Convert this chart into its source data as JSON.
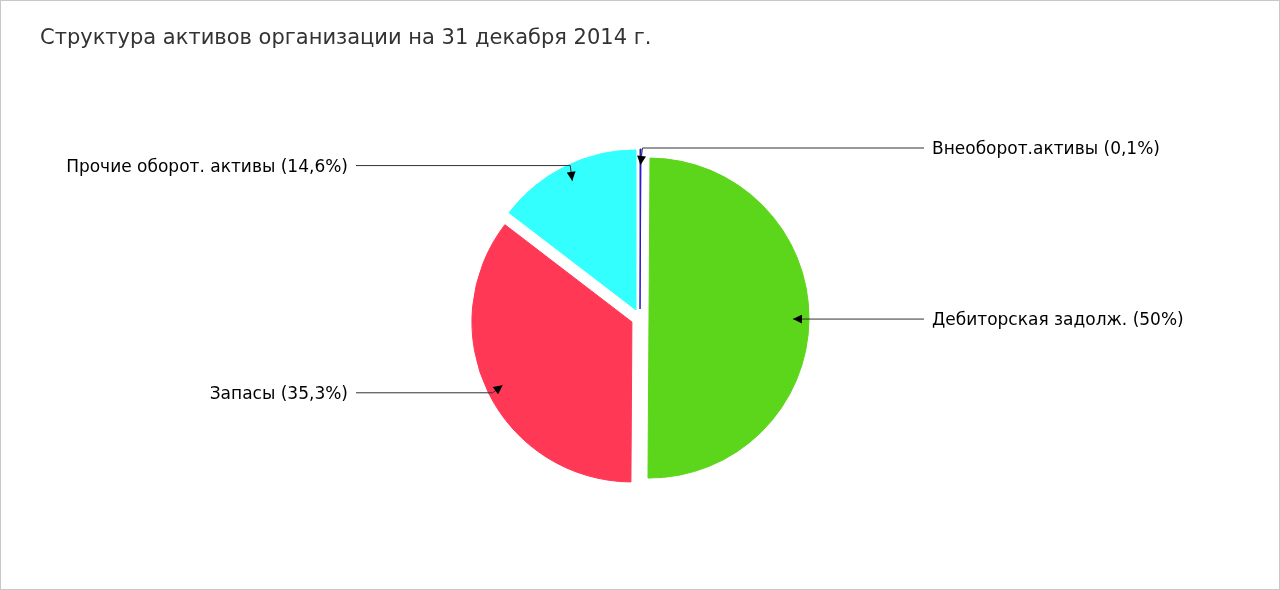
{
  "chart_data": {
    "type": "pie",
    "title": "Структура активов организации на 31 декабря 2014 г.",
    "categories": [
      "Внеоборот.активы",
      "Дебиторская задолж.",
      "Запасы",
      "Прочие оборот. активы"
    ],
    "values": [
      0.1,
      50,
      35.3,
      14.6
    ],
    "colors": [
      "#2a14d0",
      "#5cd61a",
      "#ff3856",
      "#33ffff"
    ],
    "value_labels": [
      "(0,1%)",
      "(50%)",
      "(35,3%)",
      "(14,6%)"
    ]
  }
}
